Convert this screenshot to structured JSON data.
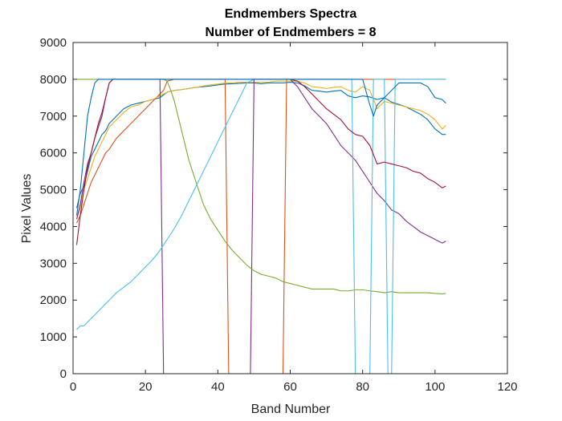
{
  "chart_data": {
    "type": "line",
    "title": "Endmembers Spectra",
    "subtitle": "Number of Endmembers = 8",
    "xlabel": "Band Number",
    "ylabel": "Pixel Values",
    "xlim": [
      0,
      120
    ],
    "ylim": [
      0,
      9000
    ],
    "xticks": [
      0,
      20,
      40,
      60,
      80,
      100,
      120
    ],
    "yticks": [
      0,
      1000,
      2000,
      3000,
      4000,
      5000,
      6000,
      7000,
      8000,
      9000
    ],
    "grid": false,
    "legend": "none",
    "series": [
      {
        "color": "#0072BD",
        "x": [
          1,
          2,
          3,
          4,
          5,
          6,
          7,
          8,
          9,
          10,
          11,
          12,
          14,
          16,
          18,
          20,
          22,
          24,
          26,
          28,
          30,
          32,
          34,
          36,
          38,
          40,
          42,
          44,
          46,
          48,
          50,
          52,
          54,
          56,
          58,
          60,
          62,
          64,
          66,
          68,
          70,
          72,
          74,
          76,
          78,
          80,
          82,
          84,
          86,
          88,
          90,
          92,
          94,
          96,
          98,
          100,
          102,
          103
        ],
        "y": [
          4500,
          4900,
          5100,
          5500,
          5900,
          6100,
          6300,
          6500,
          6600,
          6800,
          6900,
          7000,
          7200,
          7300,
          7350,
          7400,
          7450,
          7500,
          7650,
          7700,
          7720,
          7750,
          7780,
          7800,
          7820,
          7850,
          7870,
          7880,
          7890,
          7900,
          7900,
          7880,
          7900,
          7900,
          7900,
          7920,
          7900,
          7820,
          7700,
          7680,
          7650,
          7680,
          7700,
          7550,
          7500,
          7550,
          7520,
          7450,
          7500,
          7380,
          7320,
          7250,
          7150,
          7050,
          6900,
          6650,
          6500,
          6500
        ]
      },
      {
        "color": "#D95319",
        "x": [
          1,
          2,
          3,
          4,
          5,
          6,
          7,
          8,
          9,
          10,
          11,
          12,
          14,
          16,
          18,
          20,
          22,
          24,
          25,
          26,
          28,
          30,
          32,
          34,
          36,
          38,
          40,
          42,
          43,
          44,
          46,
          48,
          50,
          52,
          54,
          56,
          58,
          59,
          60,
          62,
          64,
          66,
          68,
          70,
          72,
          74,
          76,
          78,
          80,
          82,
          84,
          86,
          88,
          90,
          92,
          94,
          96,
          98,
          100,
          102,
          103
        ],
        "y": [
          4100,
          4300,
          4600,
          4900,
          5200,
          5400,
          5600,
          5800,
          6000,
          6100,
          6250,
          6400,
          6600,
          6800,
          7000,
          7200,
          7400,
          7600,
          7700,
          7950,
          8000,
          8000,
          8000,
          8000,
          8000,
          8000,
          8000,
          8000,
          0,
          0,
          0,
          0,
          0,
          0,
          0,
          0,
          0,
          8000,
          8000,
          8000,
          8000,
          8000,
          8000,
          8000,
          8000,
          8000,
          8000,
          8000,
          8000,
          8000,
          8000,
          8000,
          8000,
          8000,
          8000,
          8000,
          8000,
          8000,
          8000,
          8000,
          8000
        ]
      },
      {
        "color": "#EDB120",
        "x": [
          1,
          2,
          3,
          4,
          5,
          6,
          7,
          8,
          9,
          10,
          11,
          12,
          14,
          16,
          18,
          20,
          22,
          24,
          26,
          28,
          30,
          32,
          34,
          36,
          38,
          40,
          42,
          44,
          46,
          48,
          50,
          52,
          54,
          56,
          58,
          60,
          62,
          64,
          66,
          68,
          70,
          72,
          74,
          76,
          78,
          80,
          82,
          84,
          86,
          88,
          90,
          92,
          94,
          96,
          98,
          100,
          102,
          103
        ],
        "y": [
          4200,
          4500,
          5000,
          5300,
          5600,
          5900,
          6100,
          6300,
          6500,
          6700,
          6800,
          6900,
          7100,
          7250,
          7300,
          7400,
          7450,
          7550,
          7650,
          7700,
          7720,
          7750,
          7780,
          7820,
          7850,
          7870,
          7900,
          7900,
          7920,
          7920,
          7920,
          7920,
          7920,
          7950,
          7950,
          7950,
          7950,
          7900,
          7800,
          7780,
          7750,
          7780,
          7800,
          7700,
          7650,
          7800,
          7700,
          7200,
          7400,
          7350,
          7300,
          7250,
          7200,
          7150,
          7050,
          6900,
          6650,
          6750
        ]
      },
      {
        "color": "#7E2F8E",
        "x": [
          1,
          2,
          3,
          4,
          5,
          6,
          7,
          8,
          9,
          10,
          11,
          12,
          14,
          16,
          18,
          20,
          22,
          24,
          25,
          26,
          28,
          30,
          32,
          34,
          36,
          38,
          40,
          42,
          44,
          46,
          48,
          49,
          50,
          52,
          54,
          56,
          58,
          60,
          62,
          64,
          66,
          68,
          70,
          72,
          74,
          76,
          78,
          80,
          82,
          84,
          86,
          88,
          90,
          92,
          94,
          96,
          98,
          100,
          102,
          103
        ],
        "y": [
          4200,
          4600,
          5200,
          5700,
          6000,
          6400,
          6700,
          7000,
          7500,
          7900,
          8000,
          8000,
          8000,
          8000,
          8000,
          8000,
          8000,
          8000,
          0,
          0,
          0,
          0,
          0,
          0,
          0,
          0,
          0,
          0,
          0,
          0,
          0,
          0,
          8000,
          8000,
          8000,
          8000,
          8000,
          8000,
          7800,
          7500,
          7200,
          7000,
          6800,
          6500,
          6200,
          6000,
          5800,
          5500,
          5200,
          4900,
          4700,
          4450,
          4350,
          4150,
          4000,
          3850,
          3750,
          3650,
          3550,
          3600
        ]
      },
      {
        "color": "#77AC30",
        "x": [
          1,
          2,
          4,
          6,
          8,
          10,
          12,
          14,
          16,
          18,
          20,
          22,
          24,
          25,
          26,
          27,
          28,
          29,
          30,
          31,
          32,
          33,
          34,
          35,
          36,
          38,
          40,
          42,
          44,
          46,
          48,
          50,
          52,
          54,
          56,
          58,
          60,
          62,
          64,
          66,
          68,
          70,
          72,
          74,
          76,
          78,
          80,
          82,
          84,
          86,
          88,
          90,
          92,
          94,
          96,
          98,
          100,
          102,
          103
        ],
        "y": [
          8000,
          8000,
          8000,
          8000,
          8000,
          8000,
          8000,
          8000,
          8000,
          8000,
          8000,
          8000,
          8000,
          8000,
          7950,
          7700,
          7400,
          7000,
          6600,
          6200,
          5800,
          5500,
          5200,
          4900,
          4600,
          4200,
          3900,
          3600,
          3350,
          3150,
          2950,
          2800,
          2700,
          2650,
          2600,
          2500,
          2450,
          2400,
          2350,
          2300,
          2300,
          2300,
          2300,
          2250,
          2250,
          2280,
          2280,
          2250,
          2230,
          2200,
          2230,
          2200,
          2200,
          2200,
          2200,
          2200,
          2180,
          2170,
          2180
        ]
      },
      {
        "color": "#4DBEEE",
        "x": [
          1,
          2,
          3,
          4,
          5,
          6,
          7,
          8,
          9,
          10,
          11,
          12,
          14,
          16,
          18,
          20,
          22,
          24,
          26,
          28,
          30,
          32,
          34,
          36,
          38,
          40,
          42,
          44,
          46,
          48,
          50,
          52,
          54,
          56,
          58,
          60,
          62,
          64,
          66,
          68,
          70,
          72,
          74,
          76,
          77,
          78,
          79,
          80,
          82,
          83,
          84,
          86,
          87,
          88,
          89,
          90,
          92,
          94,
          96,
          98,
          100,
          102,
          103
        ],
        "y": [
          1200,
          1300,
          1300,
          1400,
          1500,
          1600,
          1700,
          1800,
          1900,
          2000,
          2100,
          2200,
          2350,
          2500,
          2700,
          2900,
          3100,
          3350,
          3650,
          3950,
          4300,
          4700,
          5100,
          5500,
          5900,
          6300,
          6700,
          7100,
          7500,
          7900,
          8000,
          8000,
          8000,
          8000,
          8000,
          8000,
          8000,
          8000,
          8000,
          8000,
          8000,
          8000,
          8000,
          8000,
          8000,
          0,
          0,
          0,
          0,
          8000,
          8000,
          8000,
          0,
          0,
          8000,
          8000,
          8000,
          8000,
          8000,
          8000,
          8000,
          8000,
          8000
        ]
      },
      {
        "color": "#A2142F",
        "x": [
          1,
          2,
          3,
          4,
          5,
          6,
          7,
          8,
          9,
          10,
          11,
          12,
          14,
          16,
          18,
          20,
          22,
          24,
          26,
          28,
          30,
          32,
          34,
          36,
          38,
          40,
          42,
          44,
          46,
          48,
          50,
          52,
          54,
          56,
          58,
          60,
          62,
          64,
          66,
          68,
          70,
          72,
          74,
          76,
          78,
          80,
          82,
          84,
          86,
          88,
          90,
          92,
          94,
          96,
          98,
          100,
          102,
          103
        ],
        "y": [
          3500,
          4300,
          5000,
          5600,
          6000,
          6400,
          6800,
          7100,
          7500,
          7900,
          8000,
          8000,
          8000,
          8000,
          8000,
          8000,
          8000,
          8000,
          8000,
          8000,
          8000,
          8000,
          8000,
          8000,
          8000,
          8000,
          8000,
          8000,
          8000,
          8000,
          8000,
          8000,
          8000,
          8000,
          8000,
          8000,
          7950,
          7800,
          7600,
          7400,
          7200,
          7050,
          6900,
          6650,
          6500,
          6450,
          6200,
          5700,
          5750,
          5700,
          5650,
          5600,
          5500,
          5450,
          5300,
          5200,
          5050,
          5100
        ]
      },
      {
        "color": "#0072BD",
        "x": [
          1,
          2,
          3,
          4,
          5,
          6,
          7,
          8,
          10,
          12,
          14,
          16,
          18,
          20,
          22,
          24,
          26,
          28,
          30,
          32,
          34,
          36,
          38,
          40,
          42,
          44,
          46,
          48,
          50,
          52,
          54,
          56,
          58,
          60,
          62,
          64,
          66,
          68,
          70,
          72,
          74,
          76,
          78,
          80,
          82,
          83,
          84,
          86,
          88,
          90,
          92,
          94,
          96,
          98,
          100,
          102,
          103
        ],
        "y": [
          4300,
          5000,
          6000,
          7000,
          7500,
          7900,
          8000,
          8000,
          8000,
          8000,
          8000,
          8000,
          8000,
          8000,
          8000,
          8000,
          8000,
          8000,
          8000,
          8000,
          8000,
          8000,
          8000,
          8000,
          8000,
          8000,
          8000,
          8000,
          8000,
          8000,
          8000,
          8000,
          8000,
          8000,
          8000,
          8000,
          8000,
          8000,
          8000,
          8000,
          8000,
          8000,
          8000,
          8000,
          7300,
          7000,
          7300,
          7500,
          7700,
          7900,
          7900,
          7900,
          7900,
          7800,
          7500,
          7450,
          7350
        ]
      }
    ]
  }
}
